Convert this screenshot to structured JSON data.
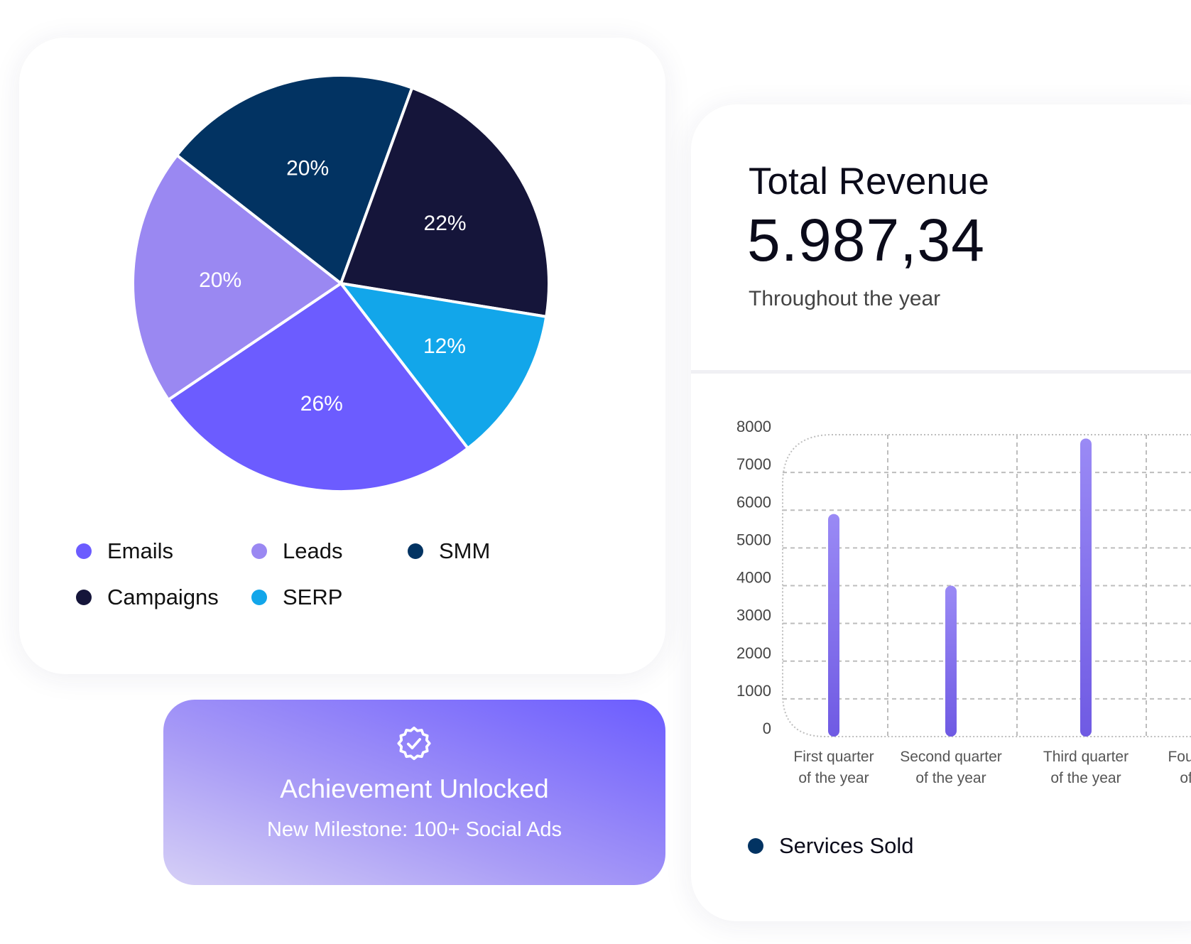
{
  "pie_card": {
    "chart_data": {
      "type": "pie",
      "slices": [
        {
          "name": "SMM",
          "value": 20,
          "label": "20%",
          "color": "#023362"
        },
        {
          "name": "Campaigns",
          "value": 22,
          "label": "22%",
          "color": "#15153a"
        },
        {
          "name": "SERP",
          "value": 12,
          "label": "12%",
          "color": "#12a6ea"
        },
        {
          "name": "Emails",
          "value": 26,
          "label": "26%",
          "color": "#6c5cff"
        },
        {
          "name": "Leads",
          "value": 20,
          "label": "20%",
          "color": "#9a88f2"
        }
      ]
    },
    "legend": [
      {
        "label": "Emails",
        "color": "#6c5cff"
      },
      {
        "label": "Leads",
        "color": "#9a88f2"
      },
      {
        "label": "SMM",
        "color": "#023362"
      },
      {
        "label": "Campaigns",
        "color": "#15153a"
      },
      {
        "label": "SERP",
        "color": "#12a6ea"
      }
    ]
  },
  "achievement": {
    "icon": "badge-check-icon",
    "title": "Achievement Unlocked",
    "subtitle": "New Milestone: 100+ Social Ads"
  },
  "revenue": {
    "title": "Total Revenue",
    "value": "5.987,34",
    "subtitle": "Throughout the year",
    "chart_data": {
      "type": "bar",
      "categories": [
        [
          "First quarter",
          "of the year"
        ],
        [
          "Second quarter",
          "of the year"
        ],
        [
          "Third quarter",
          "of the year"
        ],
        [
          "Fourth quarter",
          "of the year"
        ]
      ],
      "values": [
        5900,
        4000,
        7900,
        null
      ],
      "yticks": [
        0,
        1000,
        2000,
        3000,
        4000,
        5000,
        6000,
        7000,
        8000
      ],
      "ylim": [
        0,
        8000
      ],
      "grid": true,
      "bar_color": "#7a66ee"
    },
    "legend_label": "Services Sold",
    "legend_color": "#023362"
  }
}
